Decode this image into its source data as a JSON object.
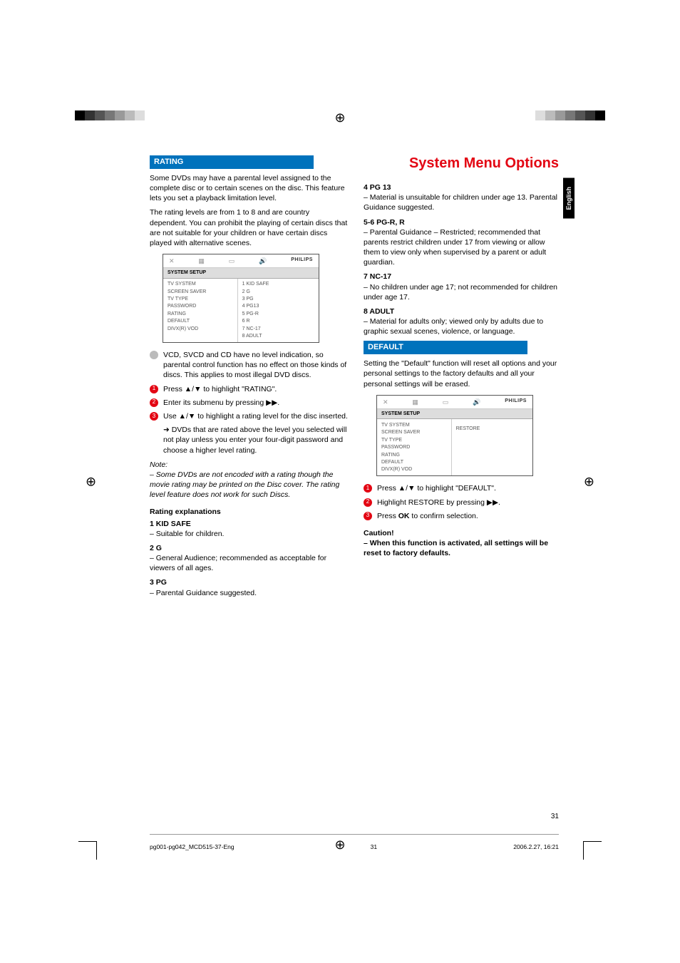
{
  "page_title": "System Menu Options",
  "lang_tab": "English",
  "page_number": "31",
  "footer": {
    "file": "pg001-pg042_MCD515-37-Eng",
    "page": "31",
    "date": "2006.2.27, 16:21"
  },
  "icons_brand": "PHILIPS",
  "left": {
    "section_rating": "RATING",
    "intro1": "Some DVDs may have a parental level assigned to the complete disc or to certain scenes on the disc. This feature lets you set a playback limitation level.",
    "intro2": "The rating levels are from 1 to 8 and are country dependent. You can prohibit the playing of certain discs that are not suitable for your children or have certain discs played with alternative scenes.",
    "menu1": {
      "tab": "SYSTEM SETUP",
      "left_items": [
        "TV SYSTEM",
        "SCREEN SAVER",
        "TV TYPE",
        "PASSWORD",
        "RATING",
        "DEFAULT",
        "DIVX(R) VOD"
      ],
      "right_items": [
        "1 KID SAFE",
        "2 G",
        "3 PG",
        "4 PG13",
        "5 PG-R",
        "6 R",
        "7 NC-17",
        "8 ADULT"
      ]
    },
    "bullet_vcd": "VCD, SVCD and CD have no level indication, so parental control function has no effect on those kinds of discs. This applies to most illegal DVD discs.",
    "step1": "Press ▲/▼  to highlight \"RATING\".",
    "step2": "Enter its submenu by pressing ▶▶.",
    "step3": "Use ▲/▼  to highlight a rating level for the disc inserted.",
    "step3_arrow": "➜ DVDs that are rated above the level you selected will not play unless you enter your four-digit password and choose a higher level rating.",
    "note_head": "Note:",
    "note_body": "– Some DVDs are not encoded with a rating though the movie rating may be printed on the Disc cover. The rating level feature does not work for such Discs.",
    "rating_exp_head": "Rating explanations",
    "r1_label": "1 KID SAFE",
    "r1_text": "– Suitable for children.",
    "r2_label": "2 G",
    "r2_text": "– General Audience; recommended as acceptable for viewers of all ages.",
    "r3_label": "3 PG",
    "r3_text": "– Parental Guidance suggested."
  },
  "right": {
    "r4_label": "4 PG 13",
    "r4_text": "– Material is unsuitable for children under age 13. Parental Guidance suggested.",
    "r5_label": "5-6 PG-R, R",
    "r5_text": "– Parental Guidance – Restricted; recommended that parents restrict children under 17 from viewing or allow them to view only when supervised by a parent or adult guardian.",
    "r7_label": "7 NC-17",
    "r7_text": "– No children under age 17; not recommended for children under age 17.",
    "r8_label": "8 ADULT",
    "r8_text": "– Material for adults only; viewed only by adults due to graphic sexual scenes, violence, or language.",
    "section_default": "DEFAULT",
    "default_intro": "Setting the \"Default\" function will reset all options and your personal settings to the factory defaults and all your personal settings will be erased.",
    "menu2": {
      "tab": "SYSTEM SETUP",
      "left_items": [
        "TV SYSTEM",
        "SCREEN SAVER",
        "TV TYPE",
        "PASSWORD",
        "RATING",
        "DEFAULT",
        "DIVX(R) VOD"
      ],
      "right_items": [
        "",
        "",
        "",
        "",
        "",
        "RESTORE",
        ""
      ]
    },
    "dstep1": "Press ▲/▼  to highlight \"DEFAULT\".",
    "dstep2": "Highlight RESTORE by pressing ▶▶.",
    "dstep3_pre": "Press ",
    "dstep3_bold": "OK",
    "dstep3_post": " to confirm selection.",
    "caution_head": "Caution!",
    "caution_body": "– When this function is activated, all settings will be reset to factory defaults."
  }
}
